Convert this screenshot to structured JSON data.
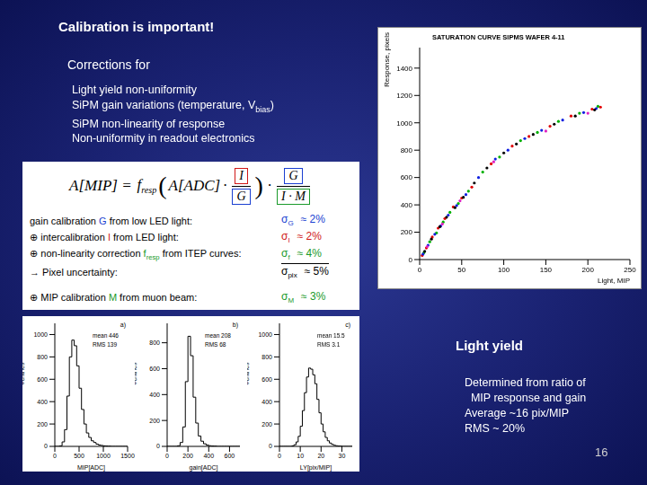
{
  "title": "Calibration is important!",
  "intro": "Corrections for",
  "corrections": [
    {
      "text": "Light yield non-uniformity"
    },
    {
      "text": "SiPM gain variations (temperature, V",
      "sub": "bias",
      "after": ")"
    },
    {
      "text": "SiPM non-linearity of response"
    },
    {
      "text": "Non-uniformity in readout electronics"
    }
  ],
  "formula": {
    "lhs": "A[MIP] =",
    "func": "f",
    "func_sub": "resp",
    "open": "(",
    "arg": "A[ADC]",
    "dot": "·",
    "close": ")",
    "frac1": {
      "num": "I",
      "num_color": "#d01818",
      "den": "G",
      "den_color": "#1a3fd1"
    },
    "frac2": {
      "num": "G",
      "num_color": "#1a3fd1",
      "den": "I · M",
      "den_color": "#1a9a2a"
    }
  },
  "calibration_items": [
    {
      "parts": [
        {
          "t": "gain calibration "
        },
        {
          "t": "G",
          "color": "#1a3fd1"
        },
        {
          "t": " from low LED light:"
        }
      ],
      "sigma": "σ",
      "sigma_sub": "G",
      "value": "≈ 2%",
      "color": "#1a3fd1"
    },
    {
      "parts": [
        {
          "t": "⊕ intercalibration "
        },
        {
          "t": "I",
          "color": "#d01818"
        },
        {
          "t": " from LED light:"
        }
      ],
      "sigma": "σ",
      "sigma_sub": "I",
      "value": "≈ 2%",
      "color": "#d01818"
    },
    {
      "parts": [
        {
          "t": "⊕ non-linearity correction "
        },
        {
          "t": "f",
          "sub": "resp",
          "color": "#1a9a2a"
        },
        {
          "t": " from ITEP curves:"
        }
      ],
      "sigma": "σ",
      "sigma_sub": "f",
      "value": "≈ 4%",
      "color": "#1a9a2a"
    },
    {
      "parts": [
        {
          "t": "→ Pixel uncertainty:"
        }
      ],
      "sigma": "σ",
      "sigma_sub": "pix",
      "value": "≈ 5%",
      "color": "#000000"
    },
    {
      "parts": [
        {
          "t": "⊕ MIP calibration "
        },
        {
          "t": "M",
          "color": "#1a9a2a"
        },
        {
          "t": " from muon beam:"
        }
      ],
      "sigma": "σ",
      "sigma_sub": "M",
      "value": "≈ 3%",
      "color": "#1a9a2a"
    }
  ],
  "light_yield": {
    "heading": "Light yield",
    "lines": [
      "Determined from ratio of",
      "  MIP response and gain",
      "Average ~16 pix/MIP",
      "RMS ~ 20%"
    ]
  },
  "page_number": "16",
  "chart_data": [
    {
      "type": "scatter",
      "title": "SATURATION CURVE SIPMS WAFER 4-11",
      "x_label": "Light, MIP",
      "y_label": "Response, pixels",
      "xlim": [
        0,
        250
      ],
      "xticks": [
        0,
        50,
        100,
        150,
        200,
        250
      ],
      "ylim": [
        0,
        1550
      ],
      "yticks": [
        0,
        200,
        400,
        600,
        800,
        1000,
        1200,
        1400
      ],
      "series": [
        {
          "color": "#e00000",
          "x": [
            3,
            8,
            15,
            22,
            30,
            40,
            50,
            62,
            85,
            110,
            130,
            155,
            180,
            205,
            215
          ],
          "values": [
            30,
            85,
            165,
            230,
            300,
            385,
            450,
            530,
            700,
            830,
            900,
            975,
            1050,
            1100,
            1115
          ]
        },
        {
          "color": "#00b000",
          "x": [
            5,
            12,
            20,
            28,
            36,
            46,
            58,
            75,
            95,
            120,
            140,
            165,
            190,
            212
          ],
          "values": [
            50,
            130,
            195,
            275,
            345,
            410,
            500,
            640,
            750,
            870,
            930,
            1010,
            1070,
            1120
          ]
        },
        {
          "color": "#1020e0",
          "x": [
            4,
            10,
            18,
            25,
            34,
            44,
            55,
            70,
            90,
            105,
            125,
            145,
            170,
            195,
            210
          ],
          "values": [
            40,
            105,
            185,
            245,
            325,
            395,
            475,
            600,
            735,
            800,
            885,
            945,
            1020,
            1075,
            1105
          ]
        },
        {
          "color": "#000000",
          "x": [
            6,
            14,
            24,
            32,
            42,
            52,
            65,
            80,
            100,
            115,
            135,
            160,
            185,
            208
          ],
          "values": [
            60,
            150,
            240,
            310,
            380,
            455,
            560,
            670,
            780,
            845,
            915,
            990,
            1050,
            1095
          ]
        },
        {
          "color": "#e020c0",
          "x": [
            9,
            27,
            48,
            88,
            150,
            200
          ],
          "values": [
            95,
            260,
            430,
            715,
            940,
            1070
          ]
        }
      ]
    },
    {
      "type": "histogram",
      "panel": "a)",
      "x_label": "MIP[ADC]",
      "y_label": "#entries",
      "stats": [
        "mean 446",
        "RMS 139"
      ],
      "xlim": [
        0,
        1500
      ],
      "xticks": [
        0,
        500,
        1000,
        1500
      ],
      "ylim": [
        0,
        1100
      ],
      "yticks": [
        0,
        200,
        400,
        600,
        800,
        1000
      ],
      "bins": [
        0,
        50,
        100,
        150,
        200,
        250,
        300,
        350,
        400,
        450,
        500,
        550,
        600,
        650,
        700,
        750,
        800,
        850,
        900,
        950,
        1000,
        1050,
        1100,
        1150,
        1200,
        1250,
        1300,
        1350,
        1400,
        1450,
        1500
      ],
      "counts": [
        0,
        0,
        5,
        40,
        150,
        450,
        800,
        950,
        900,
        720,
        520,
        330,
        200,
        120,
        80,
        50,
        35,
        20,
        12,
        8,
        5,
        3,
        2,
        0,
        0,
        0,
        0,
        0,
        0,
        0
      ]
    },
    {
      "type": "histogram",
      "panel": "b)",
      "x_label": "gain[ADC]",
      "y_label": "#entries",
      "stats": [
        "mean 208",
        "RMS 68"
      ],
      "xlim": [
        0,
        700
      ],
      "xticks": [
        0,
        200,
        400,
        600
      ],
      "ylim": [
        0,
        950
      ],
      "yticks": [
        0,
        200,
        400,
        600,
        800
      ],
      "bins": [
        0,
        25,
        50,
        75,
        100,
        125,
        150,
        175,
        200,
        225,
        250,
        275,
        300,
        325,
        350,
        375,
        400,
        425,
        450,
        475,
        500,
        525,
        550,
        575,
        600,
        625,
        650,
        675,
        700
      ],
      "counts": [
        0,
        0,
        0,
        0,
        5,
        30,
        150,
        500,
        850,
        700,
        380,
        180,
        80,
        40,
        20,
        10,
        5,
        3,
        2,
        0,
        0,
        0,
        0,
        0,
        0,
        0,
        0,
        0
      ]
    },
    {
      "type": "histogram",
      "panel": "c)",
      "x_label": "LY[pix/MIP]",
      "y_label": "#entries",
      "stats": [
        "mean 15.5",
        "RMS 3.1"
      ],
      "xlim": [
        0,
        35
      ],
      "xticks": [
        0,
        10,
        20,
        30
      ],
      "ylim": [
        0,
        1100
      ],
      "yticks": [
        0,
        200,
        400,
        600,
        800,
        1000
      ],
      "bins": [
        0,
        1,
        2,
        3,
        4,
        5,
        6,
        7,
        8,
        9,
        10,
        11,
        12,
        13,
        14,
        15,
        16,
        17,
        18,
        19,
        20,
        21,
        22,
        23,
        24,
        25,
        26,
        27,
        28,
        29,
        30,
        31,
        32,
        33,
        34,
        35
      ],
      "counts": [
        0,
        0,
        0,
        0,
        0,
        0,
        5,
        15,
        40,
        90,
        180,
        320,
        480,
        620,
        700,
        690,
        640,
        560,
        420,
        300,
        200,
        130,
        80,
        50,
        30,
        18,
        10,
        6,
        3,
        2,
        0,
        0,
        0,
        0,
        0
      ]
    }
  ]
}
